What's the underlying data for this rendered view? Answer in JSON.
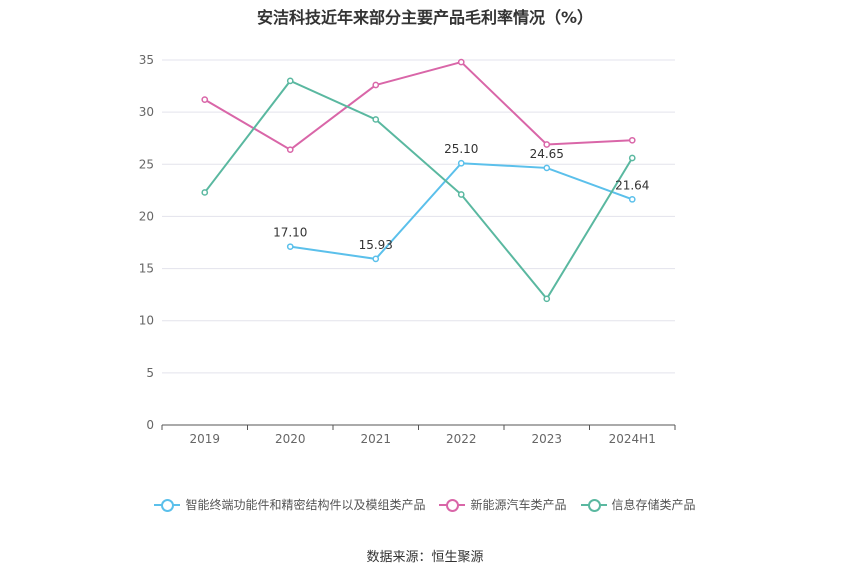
{
  "chart_data": {
    "type": "line",
    "title": "安洁科技近年来部分主要产品毛利率情况（%）",
    "categories": [
      "2019",
      "2020",
      "2021",
      "2022",
      "2023",
      "2024H1"
    ],
    "ylim": [
      0,
      35
    ],
    "yticks": [
      0,
      5,
      10,
      15,
      20,
      25,
      30,
      35
    ],
    "grid": true,
    "legend_position": "bottom",
    "series": [
      {
        "name": "智能终端功能件和精密结构件以及模组类产品",
        "color": "#5bc0eb",
        "values": [
          null,
          17.1,
          15.93,
          25.1,
          24.65,
          21.64
        ],
        "labels": [
          null,
          "17.10",
          "15.93",
          "25.10",
          "24.65",
          "21.64"
        ]
      },
      {
        "name": "新能源汽车类产品",
        "color": "#d966a8",
        "values": [
          31.2,
          26.4,
          32.6,
          34.8,
          26.9,
          27.3
        ]
      },
      {
        "name": "信息存储类产品",
        "color": "#5ab8a0",
        "values": [
          22.3,
          33.0,
          29.3,
          22.1,
          12.1,
          25.6
        ]
      }
    ]
  },
  "source": "数据来源：恒生聚源"
}
